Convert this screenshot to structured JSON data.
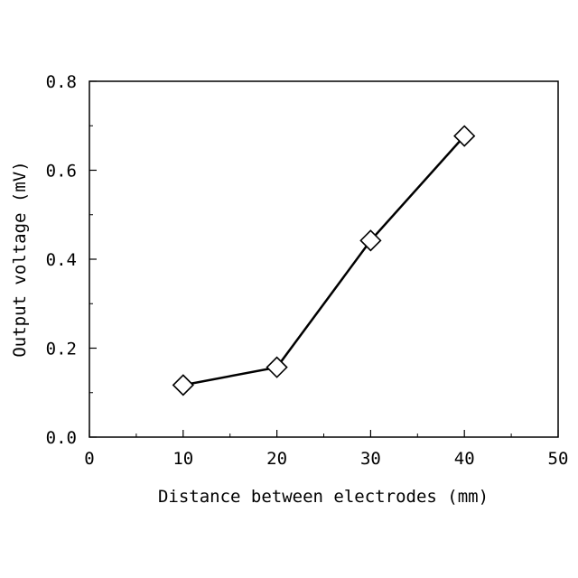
{
  "chart_data": {
    "type": "line",
    "title": "",
    "xlabel": "Distance between electrodes (mm)",
    "ylabel": "Output voltage (mV)",
    "xlim": [
      0,
      50
    ],
    "ylim": [
      0.0,
      0.8
    ],
    "xticks": [
      0,
      10,
      20,
      30,
      40,
      50
    ],
    "xtick_labels": [
      "0",
      "10",
      "20",
      "30",
      "40",
      "50"
    ],
    "yticks": [
      0.0,
      0.2,
      0.4,
      0.6,
      0.8
    ],
    "ytick_labels": [
      "0.0",
      "0.2",
      "0.4",
      "0.6",
      "0.8"
    ],
    "grid": false,
    "legend": "none",
    "series": [
      {
        "marker": "open-diamond",
        "color": "#000000",
        "x": [
          10,
          20,
          30,
          40
        ],
        "y": [
          0.117,
          0.157,
          0.442,
          0.677
        ]
      }
    ]
  }
}
